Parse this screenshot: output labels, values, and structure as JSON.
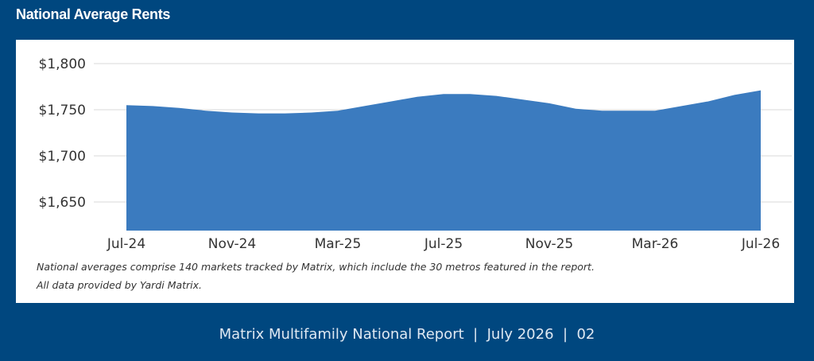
{
  "title": "National Average Rents",
  "colors": {
    "background": "#00477f",
    "panel": "#ffffff",
    "area_fill": "#3b7bbf",
    "gridline": "#d9d9d9"
  },
  "chart_data": {
    "type": "area",
    "title": "",
    "xlabel": "",
    "ylabel": "",
    "x": [
      "Jul-24",
      "Aug-24",
      "Sep-24",
      "Oct-24",
      "Nov-24",
      "Dec-24",
      "Jan-25",
      "Feb-25",
      "Mar-25",
      "Apr-25",
      "May-25",
      "Jun-25",
      "Jul-25",
      "Aug-25",
      "Sep-25",
      "Oct-25",
      "Nov-25",
      "Dec-25",
      "Jan-26",
      "Feb-26",
      "Mar-26",
      "Apr-26",
      "May-26",
      "Jun-26",
      "Jul-26"
    ],
    "values": [
      1755,
      1754,
      1752,
      1749,
      1747,
      1746,
      1746,
      1747,
      1749,
      1754,
      1759,
      1764,
      1767,
      1767,
      1765,
      1761,
      1757,
      1751,
      1749,
      1749,
      1749,
      1754,
      1759,
      1766,
      1771
    ],
    "ylim": [
      1620,
      1800
    ],
    "y_ticks": [
      "$1,800",
      "$1,750",
      "$1,700",
      "$1,650"
    ],
    "y_tick_values": [
      1800,
      1750,
      1700,
      1650
    ],
    "x_tick_labels": [
      "Jul-24",
      "Nov-24",
      "Mar-25",
      "Jul-25",
      "Nov-25",
      "Mar-26",
      "Jul-26"
    ],
    "x_tick_indices": [
      0,
      4,
      8,
      12,
      16,
      20,
      24
    ],
    "grid": true,
    "legend": "none"
  },
  "notes": [
    "National averages comprise 140 markets tracked by Matrix, which include the 30 metros featured in the report.",
    "All data provided by Yardi Matrix."
  ],
  "footer": "Matrix Multifamily National Report  |  July 2026  |  02"
}
